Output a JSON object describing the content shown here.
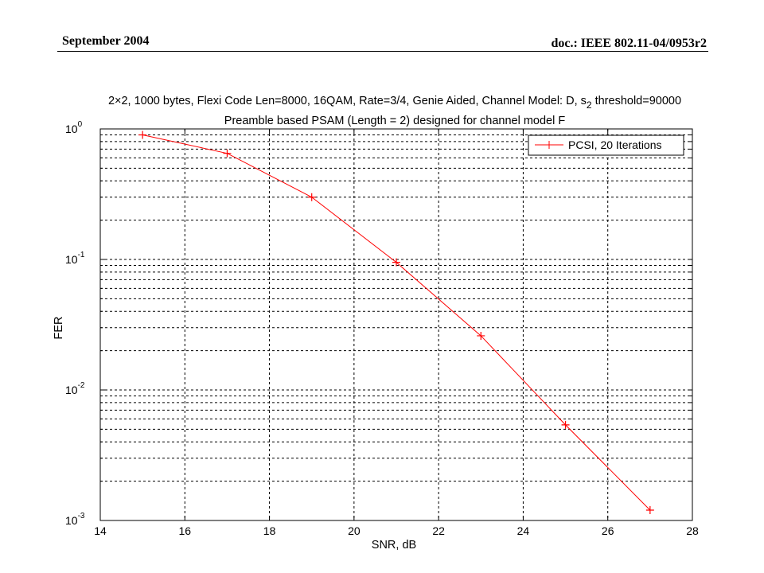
{
  "header": {
    "date": "September 2004",
    "doc": "doc.: IEEE 802.11-04/0953r2"
  },
  "chart_data": {
    "type": "line",
    "title_line1": "2×2, 1000 bytes, Flexi Code Len=8000, 16QAM, Rate=3/4, Genie Aided, Channel Model: D, s",
    "title_sub": "2",
    "title_suffix": " threshold=90000",
    "title_line2": "Preamble based PSAM (Length = 2) designed for channel model F",
    "xlabel": "SNR, dB",
    "ylabel": "FER",
    "xlim": [
      14,
      28
    ],
    "ylim": [
      0.001,
      1
    ],
    "yscale": "log",
    "grid": true,
    "legend_position": "top-right",
    "x_ticks": [
      14,
      16,
      18,
      20,
      22,
      24,
      26,
      28
    ],
    "y_ticks": [
      {
        "base": "10",
        "exp": "0"
      },
      {
        "base": "10",
        "exp": "-1"
      },
      {
        "base": "10",
        "exp": "-2"
      },
      {
        "base": "10",
        "exp": "-3"
      }
    ],
    "series": [
      {
        "name": "PCSI, 20 Iterations",
        "color": "#ff0000",
        "marker": "+",
        "x": [
          15,
          17,
          19,
          21,
          23,
          25,
          27
        ],
        "y": [
          0.9,
          0.65,
          0.3,
          0.095,
          0.026,
          0.0054,
          0.0012
        ]
      }
    ]
  }
}
